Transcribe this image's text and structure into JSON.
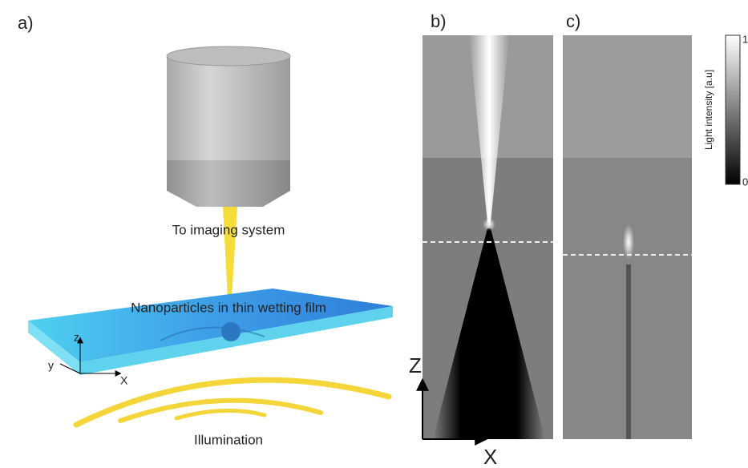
{
  "panels": {
    "a": {
      "label": "a)",
      "objective_text": "To imaging system",
      "film_text": "Nanoparticles in thin wetting film",
      "illumination_text": "Illumination",
      "axes": {
        "z": "z",
        "y": "y",
        "x": "X"
      }
    },
    "b": {
      "label": "b)"
    },
    "c": {
      "label": "c)"
    },
    "axes": {
      "z": "Z",
      "x": "X"
    },
    "colorbar": {
      "label": "Light intensity [a.u]",
      "ticks": [
        1,
        0
      ]
    }
  }
}
